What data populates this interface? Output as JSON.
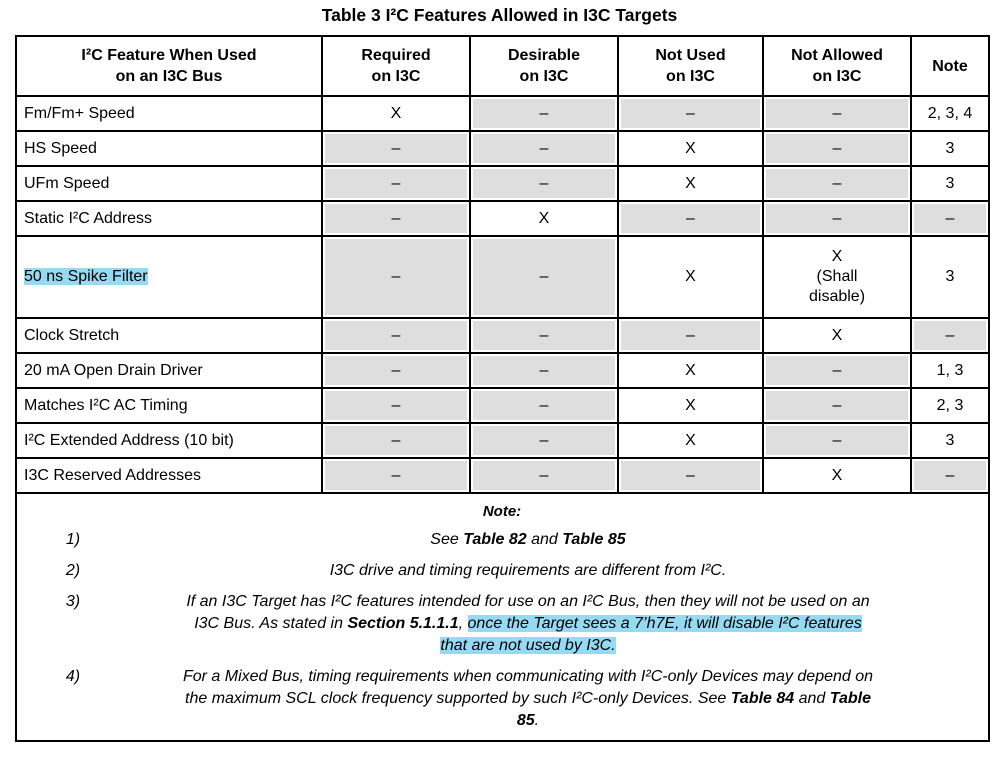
{
  "title": "Table 3 I²C Features Allowed in I3C Targets",
  "table": {
    "headers": [
      "I²C Feature When Used\non an I3C Bus",
      "Required\non I3C",
      "Desirable\non I3C",
      "Not Used\non I3C",
      "Not Allowed\non I3C",
      "Note"
    ],
    "rows": [
      {
        "feature": {
          "text": "Fm/Fm+ Speed",
          "highlighted": false
        },
        "tall": false,
        "cells": [
          {
            "text": "X",
            "shaded": false
          },
          {
            "text": "–",
            "shaded": true
          },
          {
            "text": "–",
            "shaded": true
          },
          {
            "text": "–",
            "shaded": true
          },
          {
            "text": "2, 3, 4",
            "shaded": false
          }
        ]
      },
      {
        "feature": {
          "text": "HS Speed",
          "highlighted": false
        },
        "tall": false,
        "cells": [
          {
            "text": "–",
            "shaded": true
          },
          {
            "text": "–",
            "shaded": true
          },
          {
            "text": "X",
            "shaded": false
          },
          {
            "text": "–",
            "shaded": true
          },
          {
            "text": "3",
            "shaded": false
          }
        ]
      },
      {
        "feature": {
          "text": "UFm Speed",
          "highlighted": false
        },
        "tall": false,
        "cells": [
          {
            "text": "–",
            "shaded": true
          },
          {
            "text": "–",
            "shaded": true
          },
          {
            "text": "X",
            "shaded": false
          },
          {
            "text": "–",
            "shaded": true
          },
          {
            "text": "3",
            "shaded": false
          }
        ]
      },
      {
        "feature": {
          "text": "Static I²C Address",
          "highlighted": false
        },
        "tall": false,
        "cells": [
          {
            "text": "–",
            "shaded": true
          },
          {
            "text": "X",
            "shaded": false
          },
          {
            "text": "–",
            "shaded": true
          },
          {
            "text": "–",
            "shaded": true
          },
          {
            "text": "–",
            "shaded": true
          }
        ]
      },
      {
        "feature": {
          "text": "50 ns Spike Filter",
          "highlighted": true
        },
        "tall": true,
        "cells": [
          {
            "text": "–",
            "shaded": true
          },
          {
            "text": "–",
            "shaded": true
          },
          {
            "text": "X",
            "shaded": false
          },
          {
            "text": "X\n(Shall\ndisable)",
            "shaded": false
          },
          {
            "text": "3",
            "shaded": false
          }
        ]
      },
      {
        "feature": {
          "text": "Clock Stretch",
          "highlighted": false
        },
        "tall": false,
        "cells": [
          {
            "text": "–",
            "shaded": true
          },
          {
            "text": "–",
            "shaded": true
          },
          {
            "text": "–",
            "shaded": true
          },
          {
            "text": "X",
            "shaded": false
          },
          {
            "text": "–",
            "shaded": true
          }
        ]
      },
      {
        "feature": {
          "text": "20 mA Open Drain Driver",
          "highlighted": false
        },
        "tall": false,
        "cells": [
          {
            "text": "–",
            "shaded": true
          },
          {
            "text": "–",
            "shaded": true
          },
          {
            "text": "X",
            "shaded": false
          },
          {
            "text": "–",
            "shaded": true
          },
          {
            "text": "1, 3",
            "shaded": false
          }
        ]
      },
      {
        "feature": {
          "text": "Matches I²C AC Timing",
          "highlighted": false
        },
        "tall": false,
        "cells": [
          {
            "text": "–",
            "shaded": true
          },
          {
            "text": "–",
            "shaded": true
          },
          {
            "text": "X",
            "shaded": false
          },
          {
            "text": "–",
            "shaded": true
          },
          {
            "text": "2, 3",
            "shaded": false
          }
        ]
      },
      {
        "feature": {
          "text": "I²C Extended Address (10 bit)",
          "highlighted": false
        },
        "tall": false,
        "cells": [
          {
            "text": "–",
            "shaded": true
          },
          {
            "text": "–",
            "shaded": true
          },
          {
            "text": "X",
            "shaded": false
          },
          {
            "text": "–",
            "shaded": true
          },
          {
            "text": "3",
            "shaded": false
          }
        ]
      },
      {
        "feature": {
          "text": "I3C Reserved Addresses",
          "highlighted": false
        },
        "tall": false,
        "cells": [
          {
            "text": "–",
            "shaded": true
          },
          {
            "text": "–",
            "shaded": true
          },
          {
            "text": "–",
            "shaded": true
          },
          {
            "text": "X",
            "shaded": false
          },
          {
            "text": "–",
            "shaded": true
          }
        ]
      }
    ]
  },
  "notes": {
    "label": "Note:",
    "items": [
      {
        "num": "1)",
        "segments": [
          {
            "text": "See "
          },
          {
            "text": "Table 82",
            "bold": true
          },
          {
            "text": " and "
          },
          {
            "text": "Table 85",
            "bold": true
          }
        ]
      },
      {
        "num": "2)",
        "segments": [
          {
            "text": "I3C drive and timing requirements are different from I²C."
          }
        ]
      },
      {
        "num": "3)",
        "segments": [
          {
            "text": "If an I3C Target has I²C features intended for use on an I²C Bus, then they will not be used on an\nI3C Bus. As stated in "
          },
          {
            "text": "Section 5.1.1.1",
            "bold": true
          },
          {
            "text": ", "
          },
          {
            "text": "once the Target sees a 7’h7E, it will disable I²C features\nthat are not used by I3C.",
            "highlight": true
          }
        ]
      },
      {
        "num": "4)",
        "segments": [
          {
            "text": "For a Mixed Bus, timing requirements when communicating with I²C-only Devices may depend on\nthe maximum SCL clock frequency supported by such I²C-only Devices. See "
          },
          {
            "text": "Table 84",
            "bold": true
          },
          {
            "text": " and "
          },
          {
            "text": "Table\n85",
            "bold": true
          },
          {
            "text": "."
          }
        ]
      }
    ]
  },
  "colors": {
    "highlight": "#95daf2",
    "cell_shading": "#dedede",
    "border": "#000000"
  }
}
